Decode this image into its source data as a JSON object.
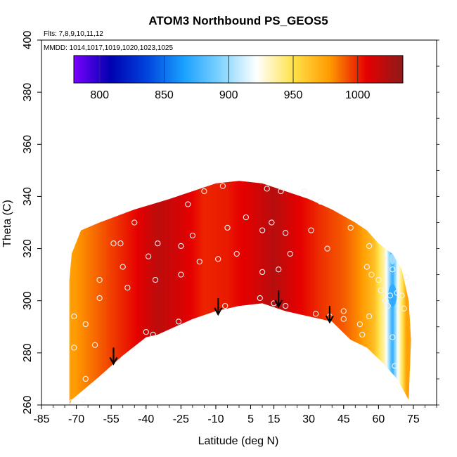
{
  "chart_data": {
    "type": "heatmap",
    "title": "ATOM3 Northbound PS_GEOS5",
    "subtitle_lines": [
      "Flts: 7,8,9,10,11,12",
      "MMDD: 1014,1017,1019,1020,1023,1025"
    ],
    "xlabel": "Latitude (deg N)",
    "ylabel": "Theta (C)",
    "xlim": [
      -85,
      85
    ],
    "ylim": [
      260,
      400
    ],
    "x_ticks": [
      -85,
      -70,
      -55,
      -40,
      -25,
      -10,
      5,
      15,
      30,
      45,
      60,
      75
    ],
    "y_ticks": [
      260,
      280,
      300,
      320,
      340,
      360,
      380,
      400
    ],
    "colorbar": {
      "min": 780,
      "max": 1035,
      "tick_values": [
        800,
        850,
        900,
        950,
        1000
      ],
      "tick_labels": [
        "800",
        "850",
        "900",
        "950",
        "1000"
      ],
      "colors": [
        "#7b00ff",
        "#0000b0",
        "#0044dd",
        "#19a0ff",
        "#7fd3ff",
        "#ffffff",
        "#ffe24a",
        "#ff9a00",
        "#e60000",
        "#8e1a1a"
      ]
    },
    "upper_boundary": [
      [
        -73,
        308
      ],
      [
        -72,
        318
      ],
      [
        -68,
        327
      ],
      [
        -60,
        330
      ],
      [
        -45,
        335
      ],
      [
        -30,
        339
      ],
      [
        -20,
        342
      ],
      [
        -10,
        345
      ],
      [
        0,
        346
      ],
      [
        10,
        345
      ],
      [
        20,
        342
      ],
      [
        30,
        339
      ],
      [
        40,
        335
      ],
      [
        50,
        330
      ],
      [
        55,
        327
      ],
      [
        60,
        322
      ],
      [
        66,
        318
      ],
      [
        70,
        312
      ],
      [
        73,
        300
      ],
      [
        74,
        285
      ]
    ],
    "lower_boundary": [
      [
        -73,
        260
      ],
      [
        -72,
        262
      ],
      [
        -60,
        271
      ],
      [
        -50,
        279
      ],
      [
        -40,
        286
      ],
      [
        -35,
        287
      ],
      [
        -25,
        291
      ],
      [
        -20,
        293
      ],
      [
        -10,
        296
      ],
      [
        0,
        298
      ],
      [
        10,
        299
      ],
      [
        20,
        296
      ],
      [
        30,
        294
      ],
      [
        40,
        292
      ],
      [
        48,
        285
      ],
      [
        55,
        282
      ],
      [
        62,
        276
      ],
      [
        68,
        270
      ],
      [
        73,
        262
      ]
    ],
    "field_profile": [
      [
        -73,
        975
      ],
      [
        -64,
        985
      ],
      [
        -55,
        995
      ],
      [
        -45,
        1005
      ],
      [
        -35,
        1020
      ],
      [
        -25,
        1012
      ],
      [
        -15,
        1000
      ],
      [
        -5,
        1002
      ],
      [
        5,
        1010
      ],
      [
        15,
        1022
      ],
      [
        25,
        1008
      ],
      [
        35,
        998
      ],
      [
        45,
        990
      ],
      [
        52,
        980
      ],
      [
        58,
        965
      ],
      [
        63,
        930
      ],
      [
        66,
        870
      ],
      [
        68,
        915
      ],
      [
        72,
        975
      ]
    ],
    "arrows": [
      [
        -54,
        282
      ],
      [
        -9,
        301
      ],
      [
        17,
        304
      ],
      [
        39,
        298
      ]
    ],
    "obs_points": [
      [
        -72,
        261
      ],
      [
        -71,
        282
      ],
      [
        -71,
        294
      ],
      [
        -67,
        262
      ],
      [
        -66,
        270
      ],
      [
        -66,
        291
      ],
      [
        -62,
        283
      ],
      [
        -60,
        301
      ],
      [
        -60,
        308
      ],
      [
        -54,
        322
      ],
      [
        -51,
        322
      ],
      [
        -50,
        313
      ],
      [
        -48,
        305
      ],
      [
        -45,
        330
      ],
      [
        -40,
        288
      ],
      [
        -39,
        317
      ],
      [
        -37,
        287
      ],
      [
        -36,
        308
      ],
      [
        -35,
        322
      ],
      [
        -26,
        292
      ],
      [
        -25,
        310
      ],
      [
        -25,
        321
      ],
      [
        -22,
        337
      ],
      [
        -20,
        325
      ],
      [
        -17,
        315
      ],
      [
        -15,
        342
      ],
      [
        -9,
        316
      ],
      [
        -7,
        344
      ],
      [
        -6,
        298
      ],
      [
        -5,
        328
      ],
      [
        -1,
        318
      ],
      [
        3,
        332
      ],
      [
        9,
        301
      ],
      [
        10,
        311
      ],
      [
        10,
        327
      ],
      [
        12,
        343
      ],
      [
        14,
        330
      ],
      [
        15,
        299
      ],
      [
        17,
        312
      ],
      [
        18,
        342
      ],
      [
        20,
        298
      ],
      [
        20,
        326
      ],
      [
        22,
        318
      ],
      [
        28,
        342
      ],
      [
        31,
        327
      ],
      [
        33,
        295
      ],
      [
        35,
        338
      ],
      [
        38,
        320
      ],
      [
        39,
        294
      ],
      [
        45,
        293
      ],
      [
        45,
        296
      ],
      [
        48,
        328
      ],
      [
        52,
        330
      ],
      [
        52,
        291
      ],
      [
        53,
        287
      ],
      [
        55,
        313
      ],
      [
        56,
        321
      ],
      [
        56,
        294
      ],
      [
        57,
        310
      ],
      [
        60,
        308
      ],
      [
        61,
        304
      ],
      [
        63,
        300
      ],
      [
        64,
        298
      ],
      [
        65,
        302
      ],
      [
        66,
        312
      ],
      [
        66,
        286
      ],
      [
        67,
        275
      ],
      [
        68,
        303
      ],
      [
        70,
        302
      ],
      [
        71,
        297
      ],
      [
        72,
        309
      ],
      [
        72,
        260
      ]
    ]
  }
}
